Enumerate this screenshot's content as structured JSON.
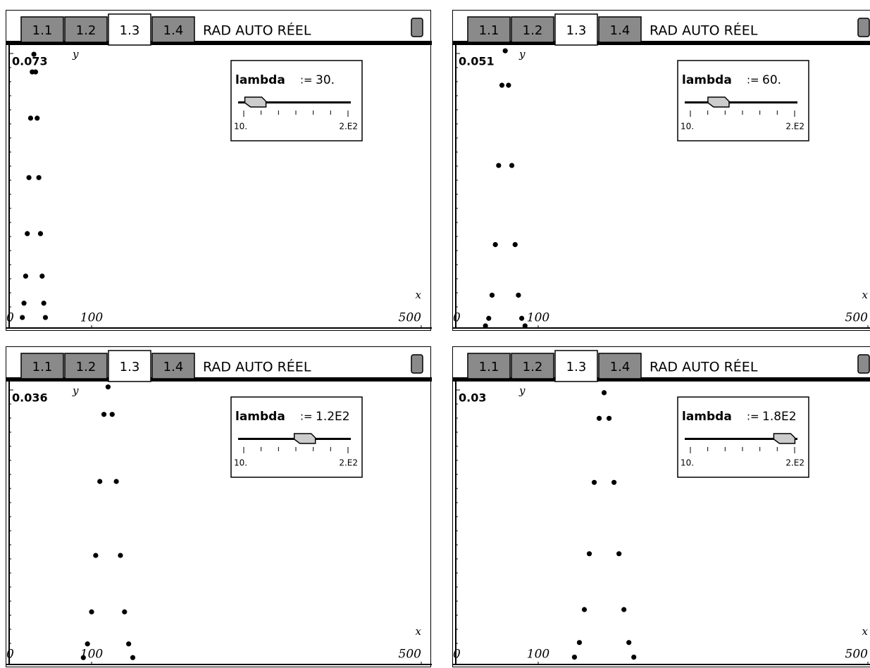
{
  "chart_data": [
    {
      "type": "scatter",
      "tabs": [
        "1.1",
        "1.2",
        "1.3",
        "1.4"
      ],
      "active_tab": 2,
      "status": "RAD AUTO RÉEL",
      "x_label": "x",
      "y_label": "y",
      "xlim": [
        0,
        500
      ],
      "xticks": [
        0,
        100,
        500
      ],
      "ylim": [
        0,
        0.073
      ],
      "yticks": [
        0.073
      ],
      "color": "#000000",
      "slider_name": "lambda",
      "slider_op": ":=",
      "slider_value": 30,
      "slider_value_label": "30.",
      "slider_lim": [
        10,
        200
      ],
      "slider_ticks": [
        {
          "value": 10,
          "label": "10."
        },
        {
          "value": 200,
          "label": "2.E2"
        }
      ],
      "x": [
        16,
        18,
        20,
        22,
        24,
        26,
        28,
        30,
        32,
        34,
        36,
        38,
        40,
        42,
        44
      ],
      "values": [
        0.0028,
        0.0066,
        0.0138,
        0.0251,
        0.04,
        0.0558,
        0.0681,
        0.0728,
        0.0681,
        0.0558,
        0.04,
        0.0251,
        0.0138,
        0.0066,
        0.0028
      ]
    },
    {
      "type": "scatter",
      "tabs": [
        "1.1",
        "1.2",
        "1.3",
        "1.4"
      ],
      "active_tab": 2,
      "status": "RAD AUTO RÉEL",
      "x_label": "x",
      "y_label": "y",
      "xlim": [
        0,
        500
      ],
      "xticks": [
        0,
        100,
        500
      ],
      "ylim": [
        0,
        0.051
      ],
      "yticks": [
        0.051
      ],
      "color": "#000000",
      "slider_name": "lambda",
      "slider_op": ":=",
      "slider_value": 60,
      "slider_value_label": "60.",
      "slider_lim": [
        10,
        200
      ],
      "slider_ticks": [
        {
          "value": 10,
          "label": "10."
        },
        {
          "value": 200,
          "label": "2.E2"
        }
      ],
      "x": [
        36,
        40,
        44,
        48,
        52,
        56,
        60,
        64,
        68,
        72,
        76,
        80,
        84
      ],
      "values": [
        0.0004,
        0.0018,
        0.0061,
        0.0155,
        0.0302,
        0.0451,
        0.0515,
        0.0451,
        0.0302,
        0.0155,
        0.0061,
        0.0018,
        0.0004
      ]
    },
    {
      "type": "scatter",
      "tabs": [
        "1.1",
        "1.2",
        "1.3",
        "1.4"
      ],
      "active_tab": 2,
      "status": "RAD AUTO RÉEL",
      "x_label": "x",
      "y_label": "y",
      "xlim": [
        0,
        500
      ],
      "xticks": [
        0,
        100,
        500
      ],
      "ylim": [
        0,
        0.036
      ],
      "yticks": [
        0.036
      ],
      "color": "#000000",
      "slider_name": "lambda",
      "slider_op": ":=",
      "slider_value": 120,
      "slider_value_label": "1.2E2",
      "slider_lim": [
        10,
        200
      ],
      "slider_ticks": [
        {
          "value": 10,
          "label": "10."
        },
        {
          "value": 200,
          "label": "2.E2"
        }
      ],
      "x": [
        90,
        95,
        100,
        105,
        110,
        115,
        120,
        125,
        130,
        135,
        140,
        145,
        150
      ],
      "values": [
        0.0009,
        0.0027,
        0.0069,
        0.0143,
        0.024,
        0.0328,
        0.0364,
        0.0328,
        0.024,
        0.0143,
        0.0069,
        0.0027,
        0.0009
      ]
    },
    {
      "type": "scatter",
      "tabs": [
        "1.1",
        "1.2",
        "1.3",
        "1.4"
      ],
      "active_tab": 2,
      "status": "RAD AUTO RÉEL",
      "x_label": "x",
      "y_label": "y",
      "xlim": [
        0,
        500
      ],
      "xticks": [
        0,
        100,
        500
      ],
      "ylim": [
        0,
        0.03
      ],
      "yticks": [
        0.03
      ],
      "color": "#000000",
      "slider_name": "lambda",
      "slider_op": ":=",
      "slider_value": 180,
      "slider_value_label": "1.8E2",
      "slider_lim": [
        10,
        200
      ],
      "slider_ticks": [
        {
          "value": 10,
          "label": "10."
        },
        {
          "value": 200,
          "label": "2.E2"
        }
      ],
      "x": [
        144,
        150,
        156,
        162,
        168,
        174,
        180,
        186,
        192,
        198,
        204,
        210,
        216
      ],
      "values": [
        0.0008,
        0.0024,
        0.006,
        0.0121,
        0.0199,
        0.0269,
        0.0297,
        0.0269,
        0.0199,
        0.0121,
        0.006,
        0.0024,
        0.0008
      ]
    }
  ]
}
